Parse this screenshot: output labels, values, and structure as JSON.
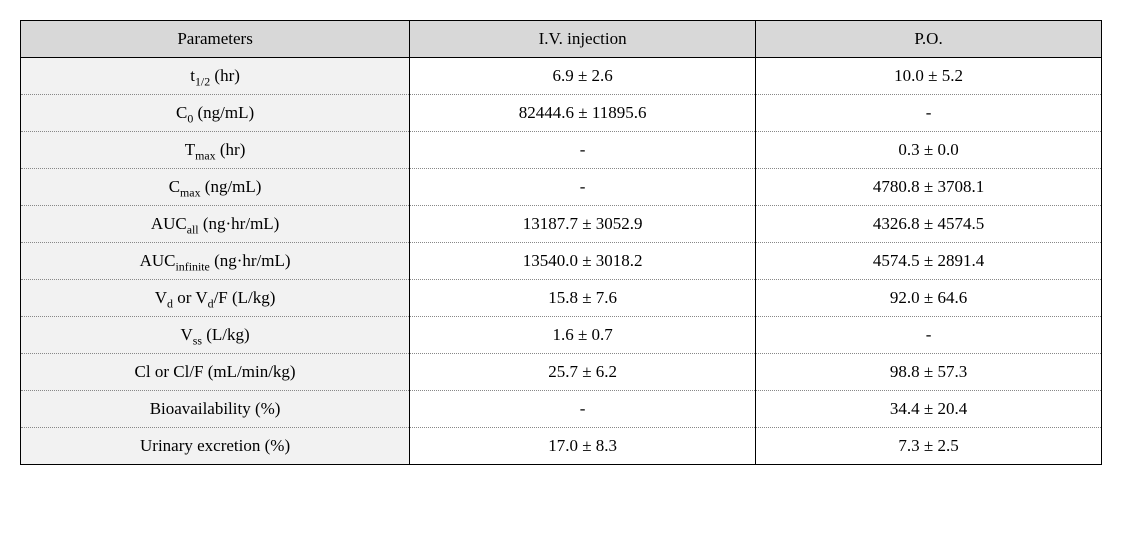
{
  "table": {
    "columns": [
      {
        "label": "Parameters"
      },
      {
        "label": "I.V. injection"
      },
      {
        "label": "P.O."
      }
    ],
    "header_bg": "#d8d8d8",
    "param_bg": "#f2f2f2",
    "value_bg": "#ffffff",
    "border_color": "#000000",
    "dotted_border_color": "#888888",
    "font_family": "Times New Roman / Batang (serif)",
    "font_size_pt": 13,
    "rows": [
      {
        "param_base": "t",
        "param_sub": "1/2",
        "unit": "(hr)",
        "iv": "6.9 ± 2.6",
        "po": "10.0 ± 5.2"
      },
      {
        "param_base": "C",
        "param_sub": "0",
        "unit": "(ng/mL)",
        "iv": "82444.6 ± 11895.6",
        "po": "-"
      },
      {
        "param_base": "T",
        "param_sub": "max",
        "unit": "(hr)",
        "iv": "-",
        "po": "0.3 ± 0.0"
      },
      {
        "param_base": "C",
        "param_sub": "max",
        "unit": "(ng/mL)",
        "iv": "-",
        "po": "4780.8 ± 3708.1"
      },
      {
        "param_base": "AUC",
        "param_sub": "all",
        "unit": "(ng·hr/mL)",
        "iv": "13187.7 ± 3052.9",
        "po": "4326.8 ± 4574.5"
      },
      {
        "param_base": "AUC",
        "param_sub": "infinite",
        "unit": "(ng·hr/mL)",
        "iv": "13540.0 ± 3018.2",
        "po": "4574.5 ± 2891.4"
      },
      {
        "param_full": "V<sub>d</sub> or V<sub>d</sub>/F",
        "unit": "(L/kg)",
        "iv": "15.8 ± 7.6",
        "po": "92.0 ± 64.6"
      },
      {
        "param_base": "V",
        "param_sub": "ss",
        "unit": "(L/kg)",
        "iv": "1.6 ± 0.7",
        "po": "-"
      },
      {
        "param_plain": "Cl or Cl/F",
        "unit": "(mL/min/kg)",
        "iv": "25.7 ± 6.2",
        "po": "98.8 ± 57.3"
      },
      {
        "param_plain": "Bioavailability",
        "unit": "(%)",
        "iv": "-",
        "po": "34.4 ± 20.4"
      },
      {
        "param_plain": "Urinary excretion",
        "unit": "(%)",
        "iv": "17.0 ± 8.3",
        "po": "7.3 ± 2.5"
      }
    ]
  }
}
